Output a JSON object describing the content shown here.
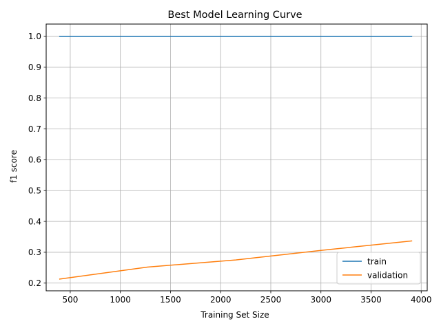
{
  "chart_data": {
    "type": "line",
    "title": "Best Model Learning Curve",
    "xlabel": "Training Set Size",
    "ylabel": "f1 score",
    "xlim": [
      260,
      4060
    ],
    "ylim": [
      0.175,
      1.04
    ],
    "xticks": [
      500,
      1000,
      1500,
      2000,
      2500,
      3000,
      3500,
      4000
    ],
    "yticks": [
      0.2,
      0.3,
      0.4,
      0.5,
      0.6,
      0.7,
      0.8,
      0.9,
      1.0
    ],
    "grid": true,
    "legend_position": "bottom-right",
    "series": [
      {
        "name": "train",
        "color": "#1f77b4",
        "x": [
          390,
          1270,
          2150,
          3030,
          3910
        ],
        "y": [
          1.0,
          1.0,
          1.0,
          1.0,
          1.0
        ]
      },
      {
        "name": "validation",
        "color": "#ff7f0e",
        "x": [
          390,
          1270,
          2150,
          3030,
          3910
        ],
        "y": [
          0.213,
          0.252,
          0.275,
          0.307,
          0.337
        ]
      }
    ]
  }
}
